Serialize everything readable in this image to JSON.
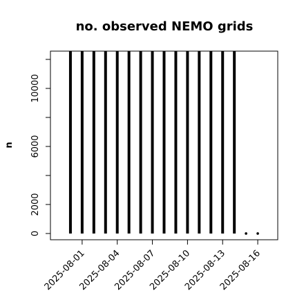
{
  "chart_data": {
    "type": "needle",
    "title": "no. observed NEMO grids",
    "y_label": "n",
    "x": [
      "2025-07-31",
      "2025-08-01",
      "2025-08-02",
      "2025-08-03",
      "2025-08-04",
      "2025-08-05",
      "2025-08-06",
      "2025-08-07",
      "2025-08-08",
      "2025-08-09",
      "2025-08-10",
      "2025-08-11",
      "2025-08-12",
      "2025-08-13",
      "2025-08-14",
      "2025-08-15",
      "2025-08-16"
    ],
    "values": [
      12570,
      12570,
      12570,
      12570,
      12570,
      12570,
      12570,
      12570,
      12570,
      12570,
      12570,
      12570,
      12570,
      12570,
      12570,
      0,
      0
    ],
    "color": "#000000",
    "xlim": [
      "2025-07-29T07:00",
      "2025-08-17T17:00"
    ],
    "xticks": [
      "2025-08-01",
      "2025-08-04",
      "2025-08-07",
      "2025-08-10",
      "2025-08-13",
      "2025-08-16"
    ],
    "ylim": [
      -430,
      12570
    ],
    "yticks": [
      0,
      2000,
      {
        "value": 4000,
        "label": null
      },
      6000,
      {
        "value": 8000,
        "label": null
      },
      10000,
      {
        "value": 12000,
        "label": null
      }
    ]
  }
}
